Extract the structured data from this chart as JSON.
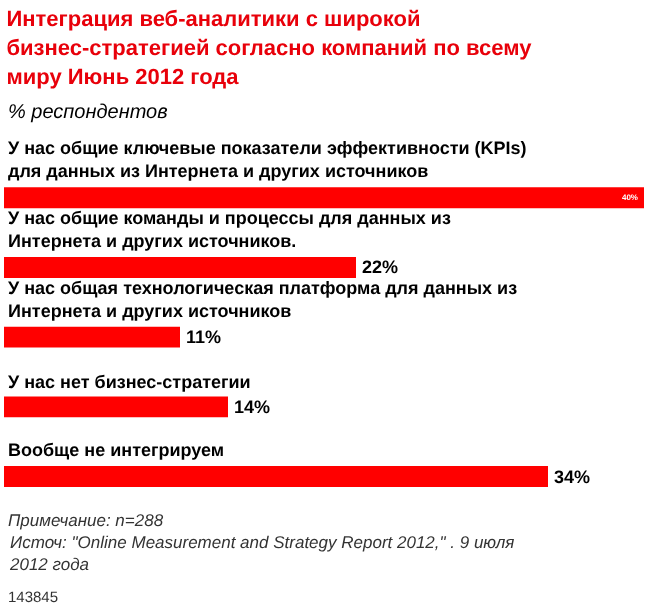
{
  "chart_data": {
    "type": "bar",
    "orientation": "horizontal",
    "title": "Интеграция веб-аналитики с широкой бизнес-стратегией согласно компаний по всему миру Июнь 2012 года",
    "subtitle": "% респондентов",
    "categories": [
      "У нас общие ключевые показатели эффективности (KPIs) для данных из Интернета и других источников",
      "У нас общие команды и процессы для данных из Интернета и других источников.",
      "У нас общая технологическая платформа для данных из Интернета и других источников",
      "У нас нет бизнес-стратегии",
      "Вообще не интегрируем"
    ],
    "values": [
      40,
      22,
      11,
      14,
      34
    ],
    "value_labels": [
      "40%",
      "22%",
      "11%",
      "14%",
      "34%"
    ],
    "color": "#ff0000",
    "annotations": [
      "Примечание: n=288",
      "Источ: \"Online Measurement and Strategy Report 2012,\" . 9 июля 2012 года",
      "143845"
    ],
    "grid": false
  }
}
